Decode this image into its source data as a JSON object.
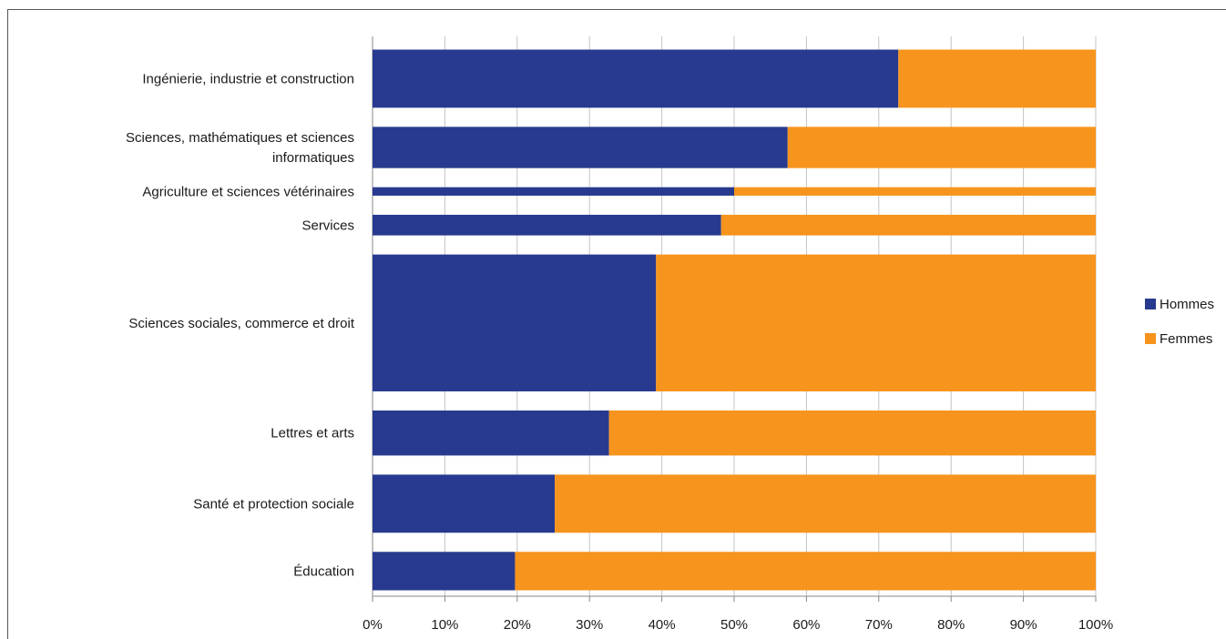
{
  "chart_data": {
    "type": "bar",
    "orientation": "horizontal",
    "stacked": "percent",
    "categories": [
      "Ingénierie, industrie et construction",
      "Sciences, mathématiques et sciences informatiques",
      "Agriculture et sciences vétérinaires",
      "Services",
      "Sciences sociales, commerce et droit",
      "Lettres et arts",
      "Santé et protection sociale",
      "Éducation"
    ],
    "category_lines": [
      [
        "Ingénierie, industrie et construction"
      ],
      [
        "Sciences, mathématiques et sciences",
        "informatiques"
      ],
      [
        "Agriculture et sciences vétérinaires"
      ],
      [
        "Services"
      ],
      [
        "Sciences sociales, commerce et droit"
      ],
      [
        "Lettres et arts"
      ],
      [
        "Santé et protection sociale"
      ],
      [
        "Éducation"
      ]
    ],
    "relative_width": [
      62,
      44,
      9,
      22,
      146,
      48,
      62,
      41
    ],
    "series": [
      {
        "name": "Hommes",
        "color": "#283a8f",
        "values": [
          72.7,
          57.4,
          50.0,
          48.2,
          39.2,
          32.7,
          25.2,
          19.7
        ]
      },
      {
        "name": "Femmes",
        "color": "#f7941d",
        "values": [
          27.3,
          42.6,
          50.0,
          51.8,
          60.8,
          67.3,
          74.8,
          80.3
        ]
      }
    ],
    "xlim": [
      0,
      100
    ],
    "x_ticks": [
      "0%",
      "10%",
      "20%",
      "30%",
      "40%",
      "50%",
      "60%",
      "70%",
      "80%",
      "90%",
      "100%"
    ],
    "title": "",
    "xlabel": "",
    "ylabel": "",
    "grid": "vertical",
    "legend": "right"
  }
}
